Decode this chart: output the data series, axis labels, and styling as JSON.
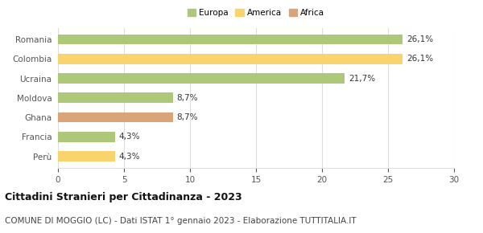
{
  "categories": [
    "Perù",
    "Francia",
    "Ghana",
    "Moldova",
    "Ucraina",
    "Colombia",
    "Romania"
  ],
  "values": [
    4.3,
    4.3,
    8.7,
    8.7,
    21.7,
    26.1,
    26.1
  ],
  "labels": [
    "4,3%",
    "4,3%",
    "8,7%",
    "8,7%",
    "21,7%",
    "26,1%",
    "26,1%"
  ],
  "colors": [
    "#f9d46e",
    "#aec87a",
    "#d9a47a",
    "#aec87a",
    "#aec87a",
    "#f9d46e",
    "#aec87a"
  ],
  "legend_items": [
    {
      "label": "Europa",
      "color": "#aec87a"
    },
    {
      "label": "America",
      "color": "#f9d46e"
    },
    {
      "label": "Africa",
      "color": "#d9a47a"
    }
  ],
  "xlim": [
    0,
    30
  ],
  "xticks": [
    0,
    5,
    10,
    15,
    20,
    25,
    30
  ],
  "title": "Cittadini Stranieri per Cittadinanza - 2023",
  "subtitle": "COMUNE DI MOGGIO (LC) - Dati ISTAT 1° gennaio 2023 - Elaborazione TUTTITALIA.IT",
  "title_fontsize": 9,
  "subtitle_fontsize": 7.5,
  "bar_height": 0.52,
  "background_color": "#ffffff",
  "grid_color": "#dddddd",
  "label_fontsize": 7.5,
  "tick_fontsize": 7.5
}
